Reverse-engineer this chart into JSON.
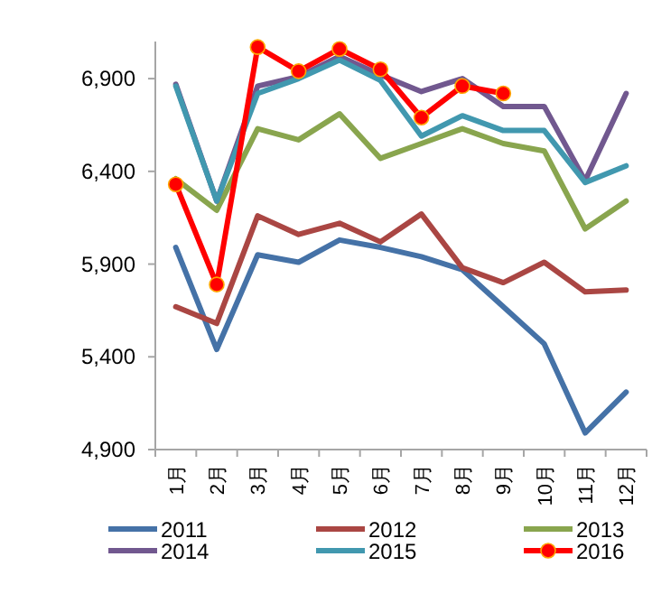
{
  "chart_data": {
    "type": "line",
    "categories": [
      "1月",
      "2月",
      "3月",
      "4月",
      "5月",
      "6月",
      "7月",
      "8月",
      "9月",
      "10月",
      "11月",
      "12月"
    ],
    "ylim": [
      4900,
      7100
    ],
    "yticks": [
      {
        "value": 4900,
        "label": "4,900"
      },
      {
        "value": 5400,
        "label": "5,400"
      },
      {
        "value": 5900,
        "label": "5,900"
      },
      {
        "value": 6400,
        "label": "6,400"
      },
      {
        "value": 6900,
        "label": "6,900"
      }
    ],
    "grid": false,
    "legend": "bottom",
    "series": [
      {
        "name": "2011",
        "color": "#4572a7",
        "marker": "none",
        "values": [
          5990,
          5440,
          5950,
          5910,
          6030,
          5990,
          5940,
          5870,
          5670,
          5470,
          4990,
          5210
        ]
      },
      {
        "name": "2012",
        "color": "#aa4643",
        "marker": "none",
        "values": [
          5670,
          5580,
          6160,
          6060,
          6120,
          6020,
          6170,
          5880,
          5800,
          5910,
          5750,
          5760
        ]
      },
      {
        "name": "2013",
        "color": "#89a54e",
        "marker": "none",
        "values": [
          6360,
          6190,
          6630,
          6570,
          6710,
          6470,
          6550,
          6630,
          6550,
          6510,
          6090,
          6240
        ]
      },
      {
        "name": "2014",
        "color": "#71588f",
        "marker": "none",
        "values": [
          6870,
          6240,
          6860,
          6910,
          7020,
          6920,
          6830,
          6900,
          6750,
          6750,
          6350,
          6820
        ]
      },
      {
        "name": "2015",
        "color": "#4198af",
        "marker": "none",
        "values": [
          6860,
          6240,
          6820,
          6900,
          7000,
          6890,
          6590,
          6700,
          6620,
          6620,
          6340,
          6430
        ]
      },
      {
        "name": "2016",
        "color": "#ff0000",
        "marker": "circle",
        "values": [
          6330,
          5790,
          7070,
          6940,
          7060,
          6950,
          6690,
          6860,
          6820,
          null,
          null,
          null
        ]
      }
    ]
  }
}
